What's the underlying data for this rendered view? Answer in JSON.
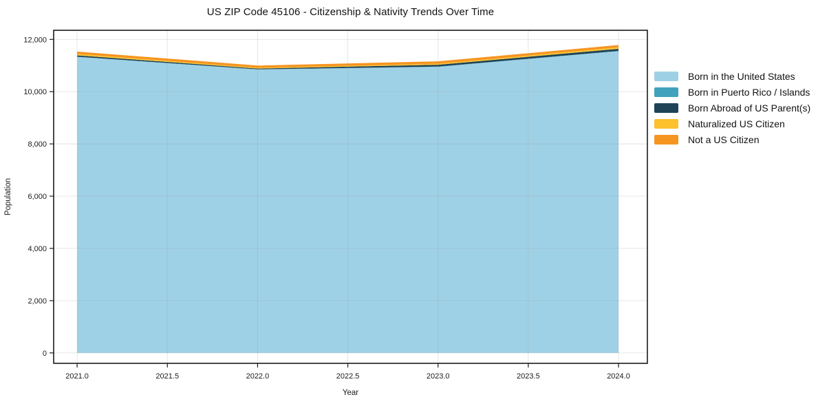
{
  "title": "US ZIP Code 45106 - Citizenship & Nativity Trends Over Time",
  "chart_data": {
    "type": "area",
    "stacked": true,
    "title": "US ZIP Code 45106 - Citizenship & Nativity Trends Over Time",
    "xlabel": "Year",
    "ylabel": "Population",
    "x": [
      2021,
      2022,
      2023,
      2024
    ],
    "series": [
      {
        "name": "Born in the United States",
        "color": "#9fd1e6",
        "values": [
          11330,
          10850,
          10950,
          11550
        ]
      },
      {
        "name": "Born in Puerto Rico / Islands",
        "color": "#41a2bd",
        "values": [
          10,
          5,
          10,
          10
        ]
      },
      {
        "name": "Born Abroad of US Parent(s)",
        "color": "#1e4356",
        "values": [
          50,
          30,
          70,
          80
        ]
      },
      {
        "name": "Naturalized US Citizen",
        "color": "#fcc12d",
        "values": [
          55,
          30,
          40,
          60
        ]
      },
      {
        "name": "Not a US Citizen",
        "color": "#f69420",
        "values": [
          90,
          85,
          90,
          85
        ]
      }
    ],
    "xlim": [
      2020.87,
      2024.16
    ],
    "ylim": [
      -400,
      12350
    ],
    "xticks": [
      {
        "value": 2021.0,
        "label": "2021.0"
      },
      {
        "value": 2021.5,
        "label": "2021.5"
      },
      {
        "value": 2022.0,
        "label": "2022.0"
      },
      {
        "value": 2022.5,
        "label": "2022.5"
      },
      {
        "value": 2023.0,
        "label": "2023.0"
      },
      {
        "value": 2023.5,
        "label": "2023.5"
      },
      {
        "value": 2024.0,
        "label": "2024.0"
      }
    ],
    "yticks": [
      {
        "value": 0,
        "label": "0"
      },
      {
        "value": 2000,
        "label": "2,000"
      },
      {
        "value": 4000,
        "label": "4,000"
      },
      {
        "value": 6000,
        "label": "6,000"
      },
      {
        "value": 8000,
        "label": "8,000"
      },
      {
        "value": 10000,
        "label": "10,000"
      },
      {
        "value": 12000,
        "label": "12,000"
      }
    ],
    "grid": true,
    "legend_position": "right-outside",
    "style": {
      "grid_color": "#9a9a9a",
      "grid_opacity": 0.28,
      "axis_color": "#1a1a1a",
      "text_color": "#1a1a1a"
    }
  }
}
